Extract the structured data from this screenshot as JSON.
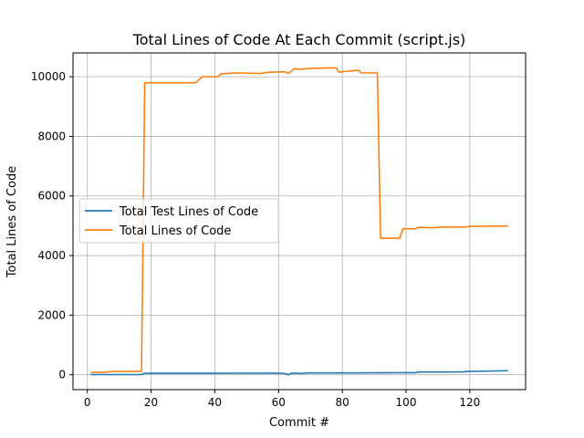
{
  "chart_data": {
    "type": "line",
    "title": "Total Lines of Code At Each Commit (script.js)",
    "xlabel": "Commit #",
    "ylabel": "Total Lines of Code",
    "xlim": [
      -4.5,
      137.5
    ],
    "ylim": [
      -500,
      10800
    ],
    "xticks": [
      0,
      20,
      40,
      60,
      80,
      100,
      120
    ],
    "yticks": [
      0,
      2000,
      4000,
      6000,
      8000,
      10000
    ],
    "grid": true,
    "legend_placement": "center-left",
    "series": [
      {
        "name": "Total Test Lines of Code",
        "color": "#1f77b4",
        "points": [
          [
            1,
            5
          ],
          [
            17,
            5
          ],
          [
            18,
            50
          ],
          [
            40,
            50
          ],
          [
            60,
            55
          ],
          [
            62,
            40
          ],
          [
            63,
            0
          ],
          [
            64,
            50
          ],
          [
            66,
            50
          ],
          [
            67,
            40
          ],
          [
            69,
            60
          ],
          [
            80,
            60
          ],
          [
            90,
            65
          ],
          [
            100,
            70
          ],
          [
            103,
            70
          ],
          [
            104,
            90
          ],
          [
            110,
            90
          ],
          [
            118,
            95
          ],
          [
            119,
            110
          ],
          [
            125,
            120
          ],
          [
            132,
            135
          ]
        ]
      },
      {
        "name": "Total Lines of Code",
        "color": "#ff7f0e",
        "points": [
          [
            1,
            80
          ],
          [
            5,
            80
          ],
          [
            8,
            110
          ],
          [
            17,
            110
          ],
          [
            18,
            9800
          ],
          [
            34,
            9800
          ],
          [
            36,
            10000
          ],
          [
            41,
            10000
          ],
          [
            42,
            10100
          ],
          [
            47,
            10130
          ],
          [
            54,
            10110
          ],
          [
            57,
            10150
          ],
          [
            62,
            10170
          ],
          [
            63,
            10110
          ],
          [
            65,
            10270
          ],
          [
            67,
            10250
          ],
          [
            70,
            10280
          ],
          [
            78,
            10300
          ],
          [
            79,
            10150
          ],
          [
            81,
            10180
          ],
          [
            85,
            10220
          ],
          [
            86,
            10130
          ],
          [
            91,
            10130
          ],
          [
            92,
            4580
          ],
          [
            98,
            4580
          ],
          [
            99,
            4900
          ],
          [
            103,
            4900
          ],
          [
            104,
            4950
          ],
          [
            108,
            4930
          ],
          [
            110,
            4950
          ],
          [
            119,
            4960
          ],
          [
            120,
            4980
          ],
          [
            132,
            4990
          ]
        ]
      }
    ]
  }
}
